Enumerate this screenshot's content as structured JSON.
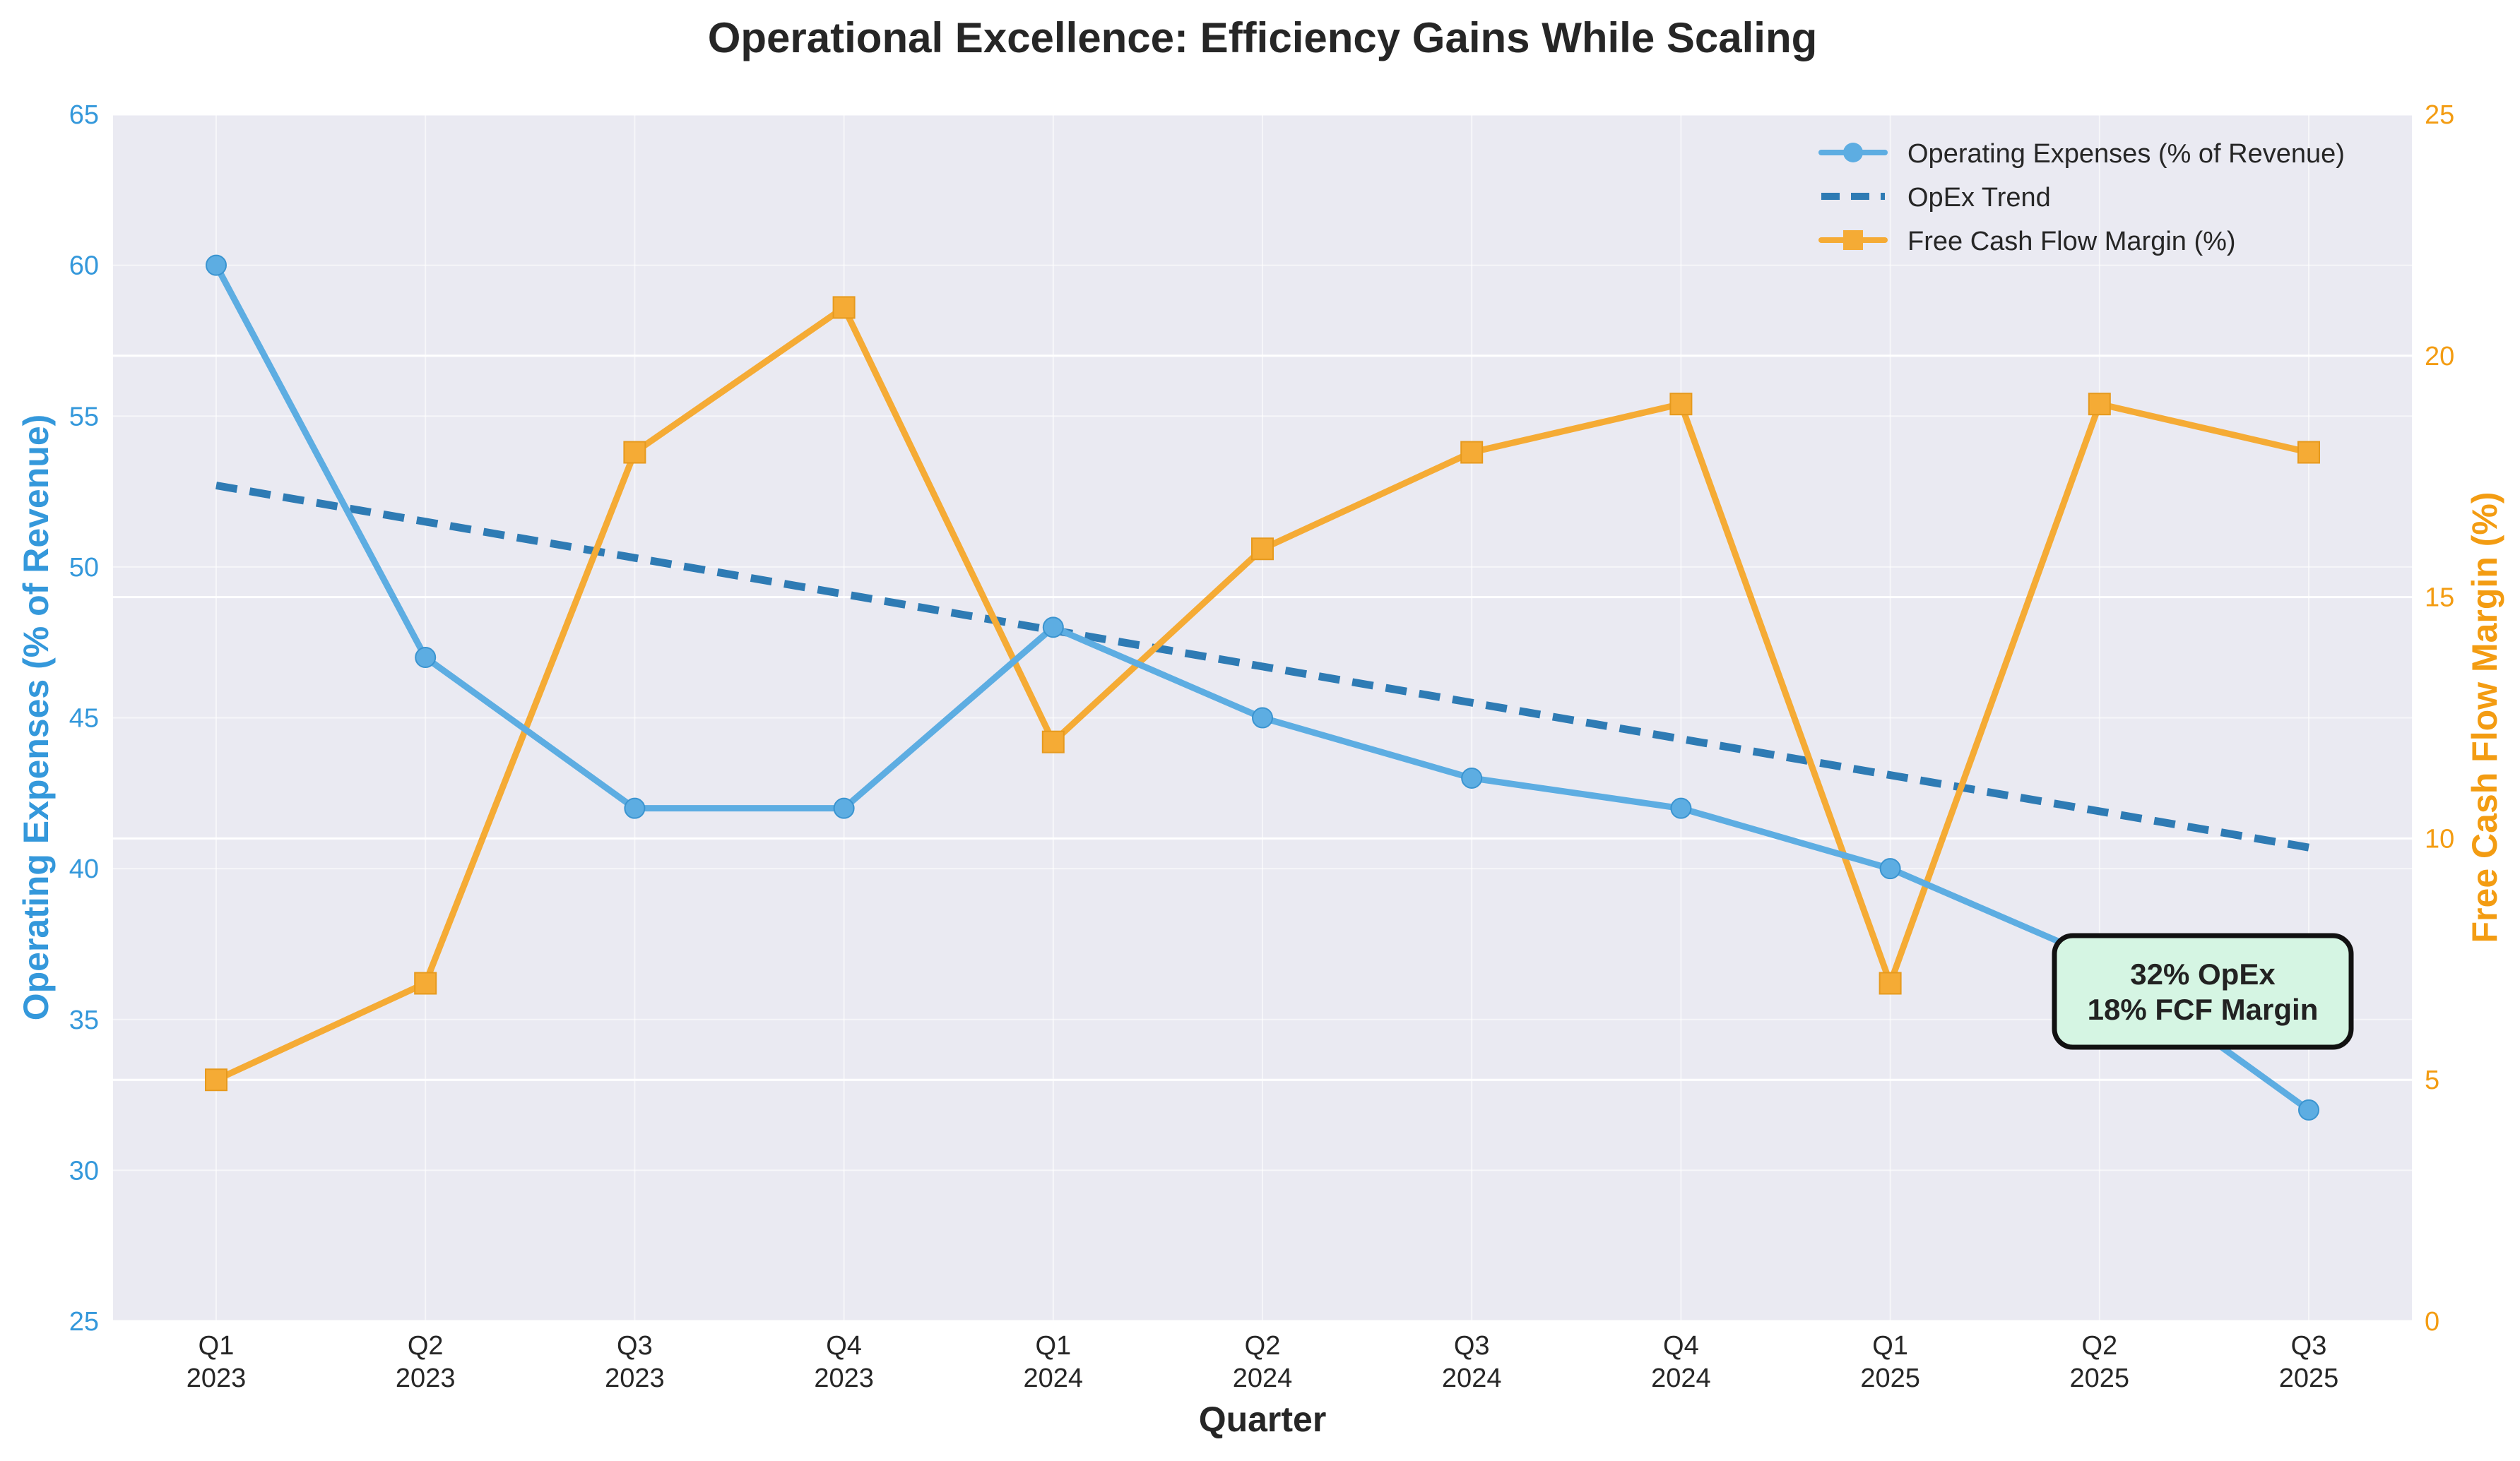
{
  "chart_data": {
    "type": "line",
    "title": "Operational Excellence: Efficiency Gains While Scaling",
    "xlabel": "Quarter",
    "ylabel_left": "Operating Expenses (% of Revenue)",
    "ylabel_right": "Free Cash Flow Margin (%)",
    "categories": [
      [
        "Q1",
        "2023"
      ],
      [
        "Q2",
        "2023"
      ],
      [
        "Q3",
        "2023"
      ],
      [
        "Q4",
        "2023"
      ],
      [
        "Q1",
        "2024"
      ],
      [
        "Q2",
        "2024"
      ],
      [
        "Q3",
        "2024"
      ],
      [
        "Q4",
        "2024"
      ],
      [
        "Q1",
        "2025"
      ],
      [
        "Q2",
        "2025"
      ],
      [
        "Q3",
        "2025"
      ]
    ],
    "left_axis": {
      "ylim": [
        25,
        65
      ],
      "ticks": [
        25,
        30,
        35,
        40,
        45,
        50,
        55,
        60,
        65
      ],
      "color": "#3498db"
    },
    "right_axis": {
      "ylim": [
        0,
        25
      ],
      "ticks": [
        0,
        5,
        10,
        15,
        20,
        25
      ],
      "color": "#f39c12"
    },
    "grid": true,
    "legend_position": "top-right",
    "series": [
      {
        "name": "Operating Expenses (% of Revenue)",
        "axis": "left",
        "style": "solid",
        "marker": "circle",
        "color": "#5dade2",
        "values": [
          60,
          47,
          42,
          42,
          48,
          45,
          43,
          42,
          40,
          37,
          32
        ]
      },
      {
        "name": "OpEx Trend",
        "axis": "left",
        "style": "dashed",
        "marker": "none",
        "color": "#2e7bb4",
        "values": [
          52.7,
          51.5,
          50.3,
          49.1,
          47.9,
          46.7,
          45.5,
          44.3,
          43.1,
          41.9,
          40.7
        ]
      },
      {
        "name": "Free Cash Flow Margin (%)",
        "axis": "right",
        "style": "solid",
        "marker": "square",
        "color": "#f5ab35",
        "values": [
          5,
          7,
          18,
          21,
          12,
          16,
          18,
          19,
          7,
          19,
          18
        ]
      }
    ],
    "annotation": {
      "lines": [
        "32% OpEx",
        "18% FCF Margin"
      ],
      "background": "#d5f5e3",
      "border": "#111111"
    }
  }
}
